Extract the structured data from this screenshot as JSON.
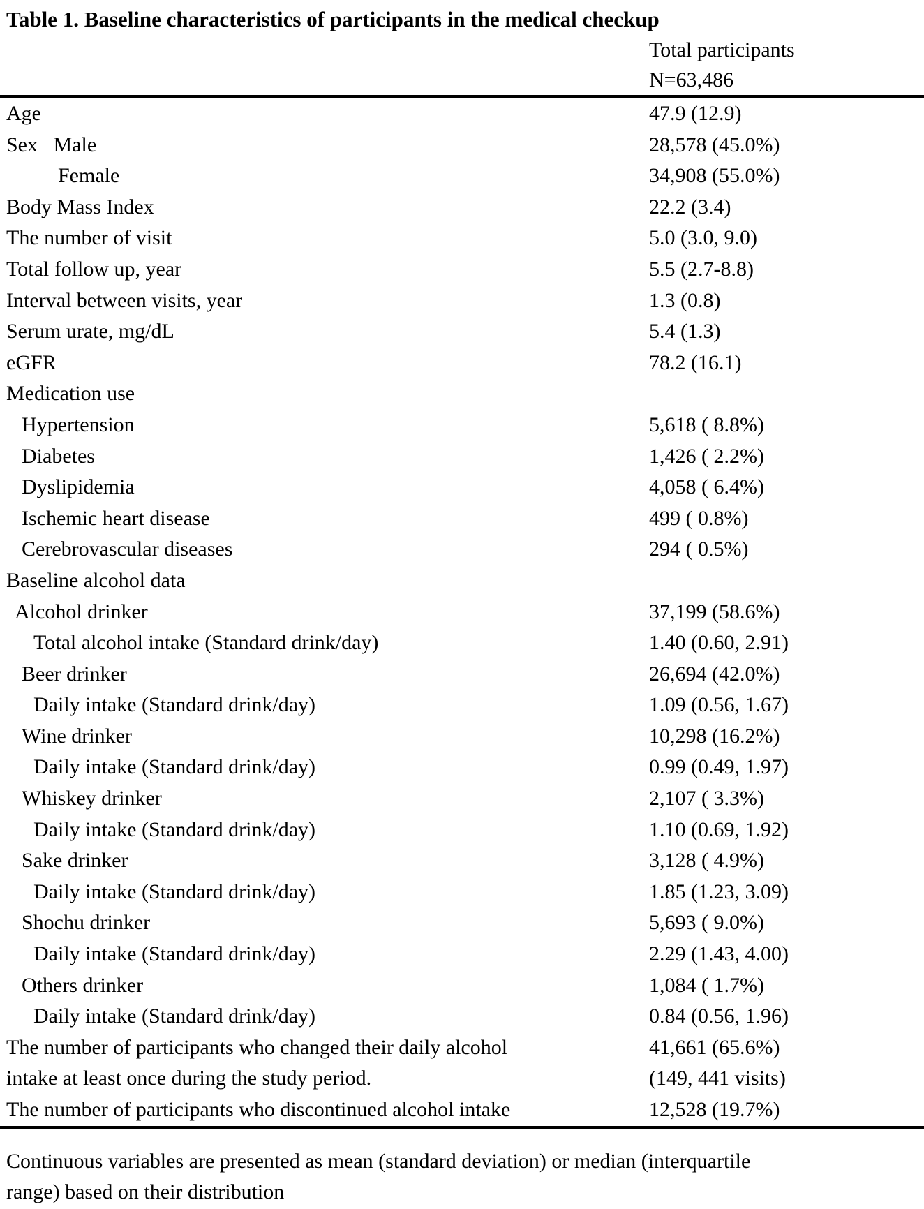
{
  "title": "Table 1. Baseline characteristics of participants in the medical checkup",
  "column_header": {
    "line1": "Total participants",
    "line2": "N=63,486"
  },
  "table": {
    "rows": [
      {
        "label": "Age",
        "value": "47.9 (12.9)",
        "indent": 0
      },
      {
        "label": "Sex   Male",
        "value": "28,578 (45.0%)",
        "indent": 0
      },
      {
        "label": "Female",
        "value": "34,908 (55.0%)",
        "indent": 4
      },
      {
        "label": "Body Mass Index",
        "value": "22.2 (3.4)",
        "indent": 0
      },
      {
        "label": "The number of visit",
        "value": "5.0 (3.0, 9.0)",
        "indent": 0
      },
      {
        "label": "Total follow up, year",
        "value": "5.5 (2.7-8.8)",
        "indent": 0
      },
      {
        "label": "Interval between visits, year",
        "value": "1.3 (0.8)",
        "indent": 0
      },
      {
        "label": "Serum urate, mg/dL",
        "value": "5.4 (1.3)",
        "indent": 0
      },
      {
        "label": "eGFR",
        "value": "78.2 (16.1)",
        "indent": 0
      },
      {
        "label": "Medication use",
        "value": "",
        "indent": 0
      },
      {
        "label": "Hypertension",
        "value": "5,618 ( 8.8%)",
        "indent": 2
      },
      {
        "label": "Diabetes",
        "value": "1,426 ( 2.2%)",
        "indent": 2
      },
      {
        "label": "Dyslipidemia",
        "value": "4,058 ( 6.4%)",
        "indent": 2
      },
      {
        "label": "Ischemic heart disease",
        "value": "499 ( 0.8%)",
        "indent": 2
      },
      {
        "label": "Cerebrovascular diseases",
        "value": "294 ( 0.5%)",
        "indent": 2
      },
      {
        "label": "Baseline alcohol data",
        "value": "",
        "indent": 0
      },
      {
        "label": "Alcohol drinker",
        "value": "37,199 (58.6%)",
        "indent": 1
      },
      {
        "label": "Total alcohol intake (Standard drink/day)",
        "value": "1.40 (0.60, 2.91)",
        "indent": 3
      },
      {
        "label": "Beer drinker",
        "value": "26,694 (42.0%)",
        "indent": 2
      },
      {
        "label": "Daily intake (Standard drink/day)",
        "value": "1.09 (0.56, 1.67)",
        "indent": 3
      },
      {
        "label": "Wine drinker",
        "value": "10,298 (16.2%)",
        "indent": 2
      },
      {
        "label": "Daily intake (Standard drink/day)",
        "value": "0.99 (0.49, 1.97)",
        "indent": 3
      },
      {
        "label": "Whiskey drinker",
        "value": "2,107 ( 3.3%)",
        "indent": 2
      },
      {
        "label": "Daily intake (Standard drink/day)",
        "value": "1.10 (0.69, 1.92)",
        "indent": 3
      },
      {
        "label": "Sake drinker",
        "value": "3,128 ( 4.9%)",
        "indent": 2
      },
      {
        "label": "Daily intake (Standard drink/day)",
        "value": "1.85 (1.23, 3.09)",
        "indent": 3
      },
      {
        "label": "Shochu drinker",
        "value": "5,693 ( 9.0%)",
        "indent": 2
      },
      {
        "label": "Daily intake (Standard drink/day)",
        "value": "2.29 (1.43, 4.00)",
        "indent": 3
      },
      {
        "label": "Others drinker",
        "value": "1,084 ( 1.7%)",
        "indent": 2
      },
      {
        "label": "Daily intake (Standard drink/day)",
        "value": "0.84 (0.56, 1.96)",
        "indent": 3
      },
      {
        "label": "The number of participants who changed their daily alcohol\nintake at least once during the study period.",
        "value": "41,661 (65.6%)\n(149, 441 visits)",
        "indent": 0
      },
      {
        "label": "The number of participants who discontinued alcohol intake",
        "value": "12,528 (19.7%)",
        "indent": 0
      }
    ]
  },
  "footnote": "Continuous variables are presented as mean (standard deviation) or median (interquartile\nrange) based on their distribution"
}
